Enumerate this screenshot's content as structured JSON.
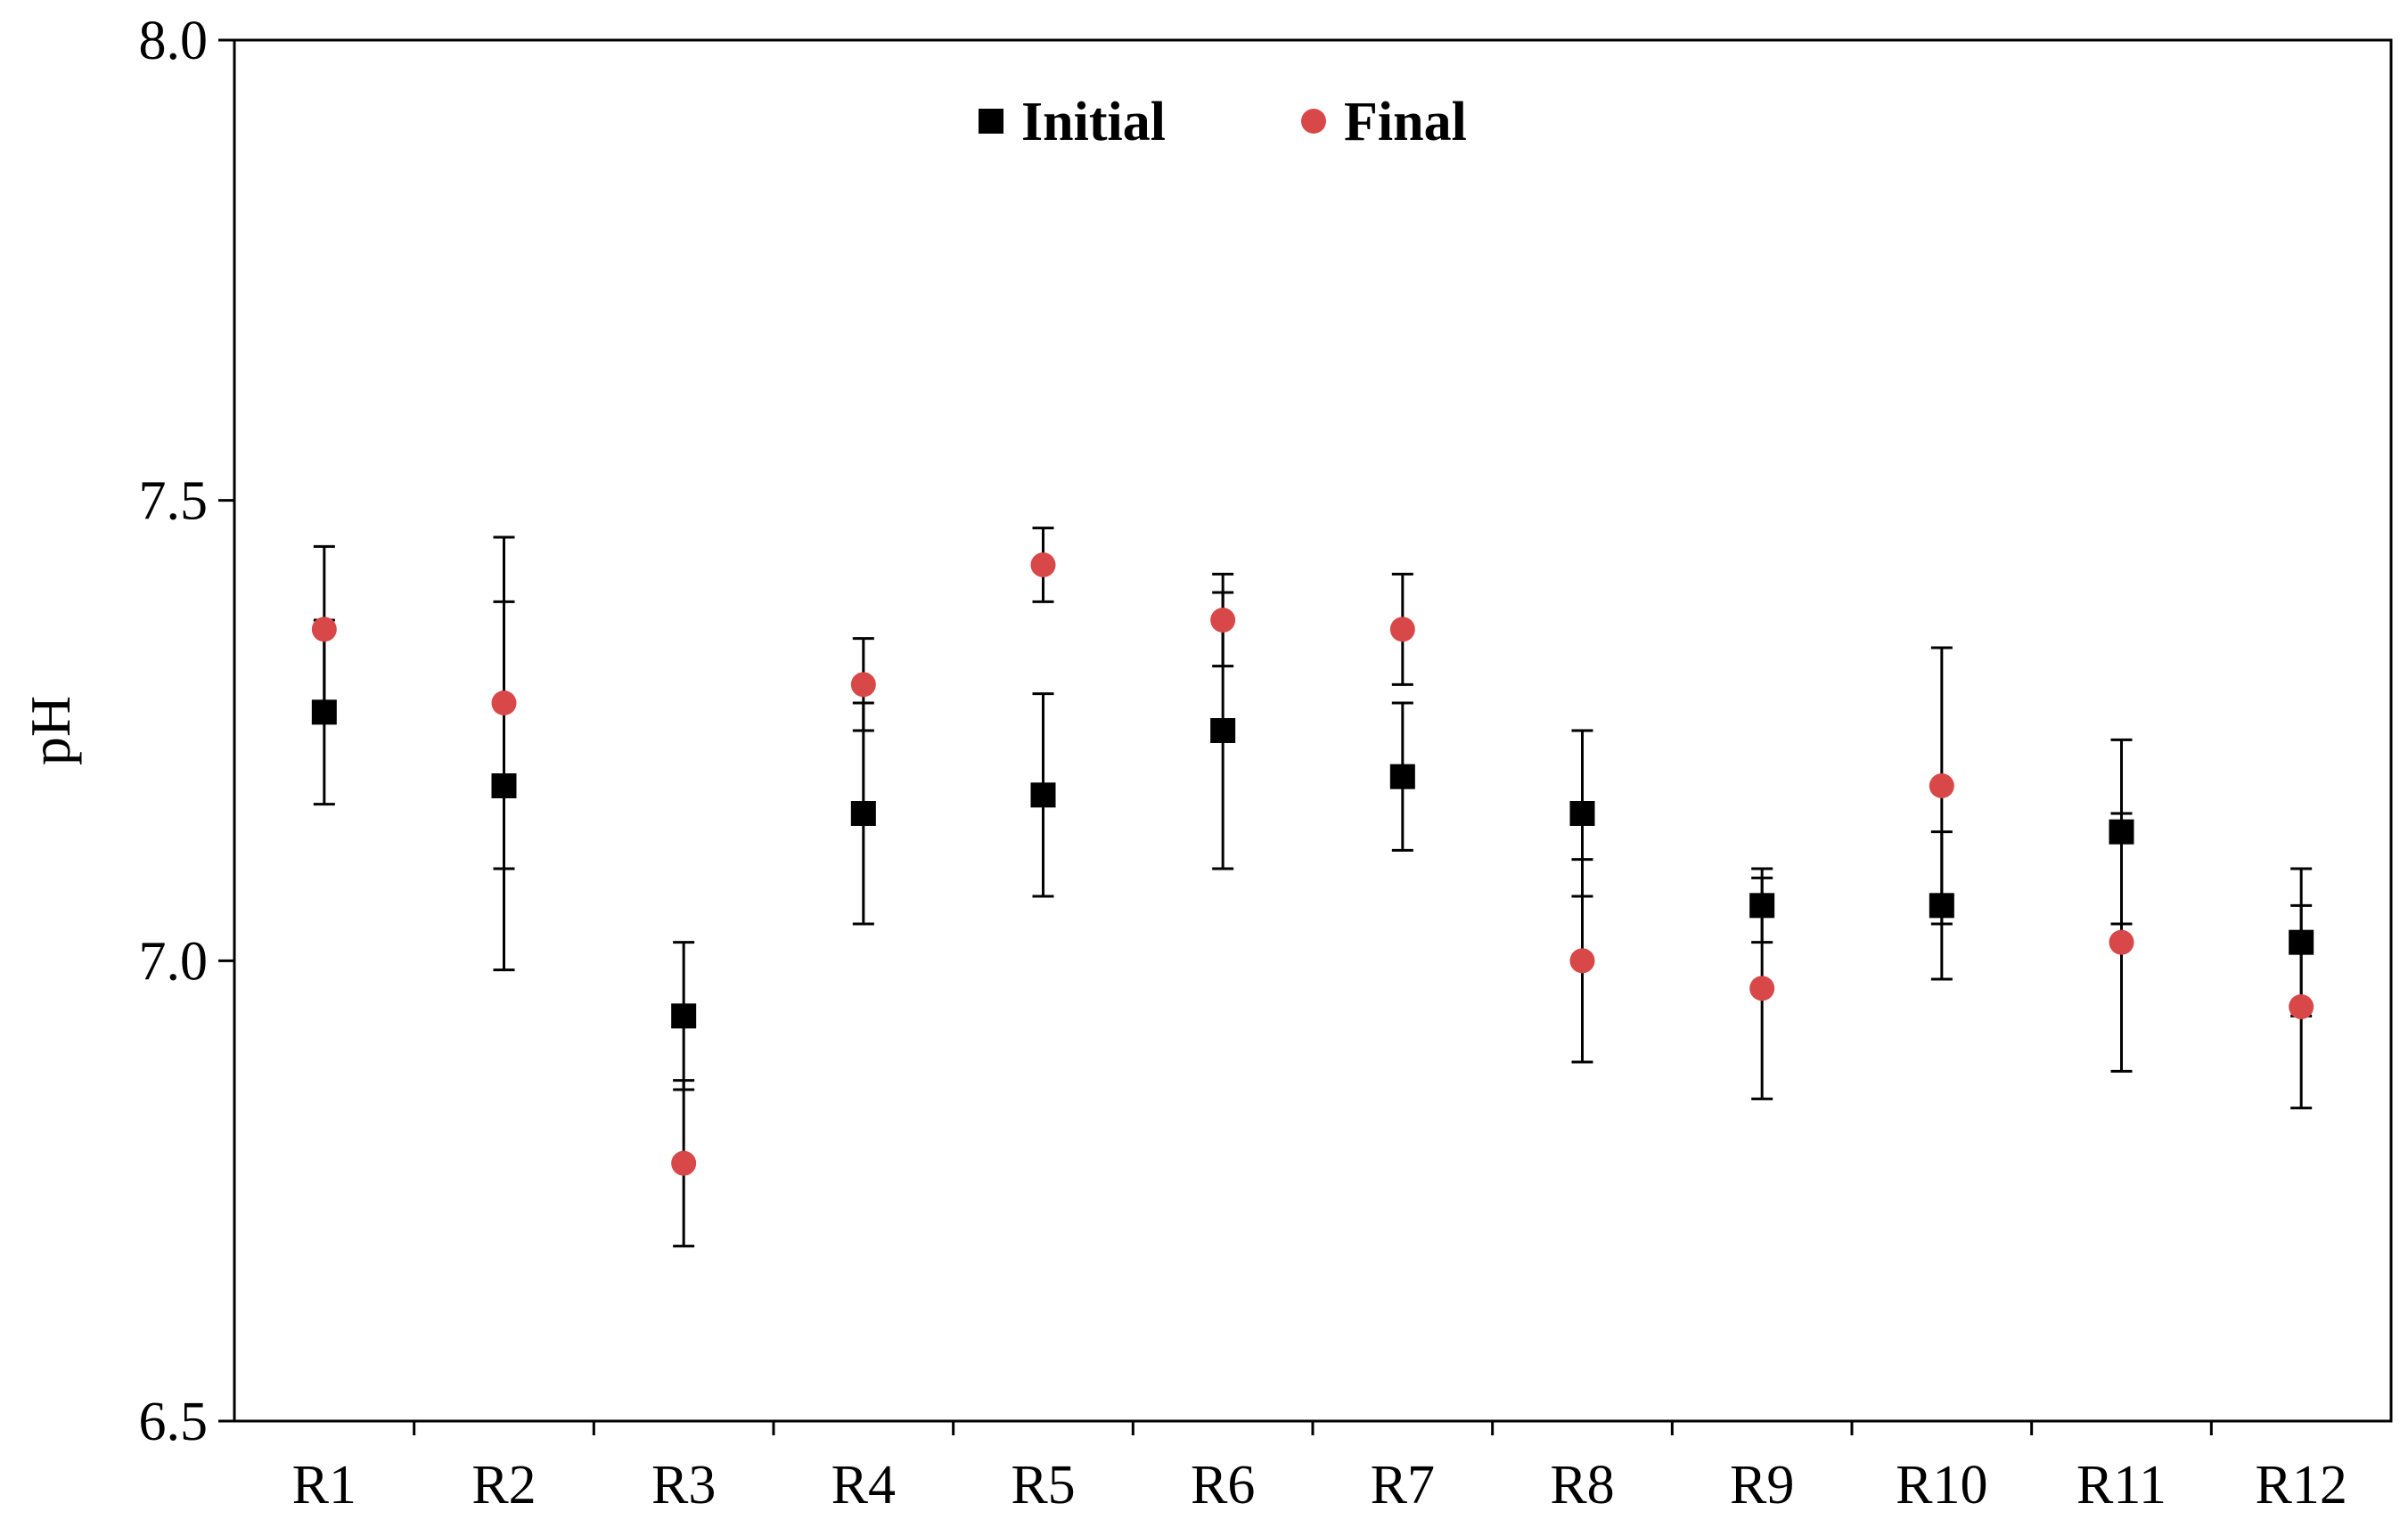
{
  "chart_data": {
    "type": "scatter",
    "title": "",
    "xlabel": "",
    "ylabel": "pH",
    "ylim": [
      6.5,
      8.0
    ],
    "yticks": [
      "6.5",
      "7.0",
      "7.5",
      "8.0"
    ],
    "categories": [
      "R1",
      "R2",
      "R3",
      "R4",
      "R5",
      "R6",
      "R7",
      "R8",
      "R9",
      "R10",
      "R11",
      "R12"
    ],
    "grid": false,
    "legend_position": "top-center",
    "series": [
      {
        "name": "Initial",
        "marker": "square",
        "color": "#000000",
        "values": [
          7.27,
          7.19,
          6.94,
          7.16,
          7.18,
          7.25,
          7.2,
          7.16,
          7.06,
          7.06,
          7.14,
          7.02
        ],
        "errors": [
          0.1,
          0.2,
          0.08,
          0.12,
          0.11,
          0.15,
          0.08,
          0.09,
          0.04,
          0.08,
          0.1,
          0.08
        ]
      },
      {
        "name": "Final",
        "marker": "circle",
        "color": "#d94848",
        "values": [
          7.36,
          7.28,
          6.78,
          7.3,
          7.43,
          7.37,
          7.36,
          7.0,
          6.97,
          7.19,
          7.02,
          6.95
        ],
        "errors": [
          0.09,
          0.18,
          0.09,
          0.05,
          0.04,
          0.05,
          0.06,
          0.11,
          0.12,
          0.15,
          0.14,
          0.11
        ]
      }
    ]
  }
}
